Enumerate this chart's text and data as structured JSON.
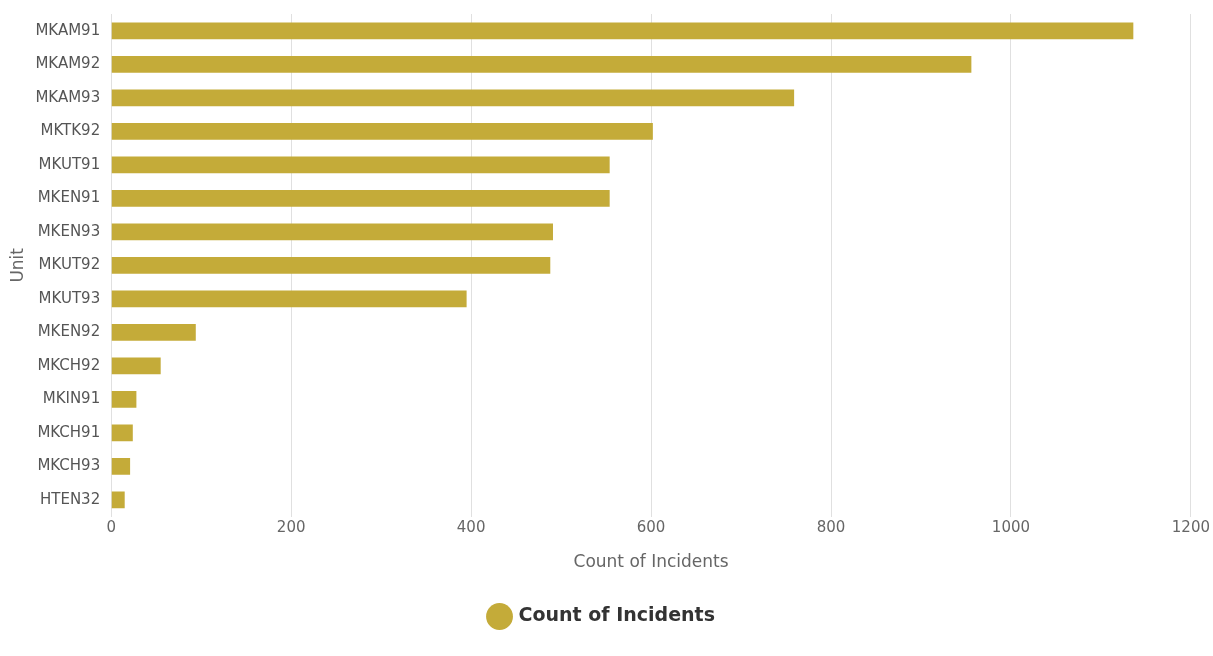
{
  "chart_data": {
    "type": "bar",
    "orientation": "horizontal",
    "xlabel": "Count of Incidents",
    "ylabel": "Unit",
    "categories": [
      "MKAM91",
      "MKAM92",
      "MKAM93",
      "MKTK92",
      "MKUT91",
      "MKEN91",
      "MKEN93",
      "MKUT92",
      "MKUT93",
      "MKEN92",
      "MKCH92",
      "MKIN91",
      "MKCH91",
      "MKCH93",
      "HTEN32"
    ],
    "series": [
      {
        "name": "Count of Incidents",
        "color": "#c4ab39",
        "values": [
          1136,
          956,
          759,
          602,
          554,
          554,
          491,
          488,
          395,
          94,
          55,
          28,
          24,
          21,
          15
        ]
      }
    ],
    "xlim": [
      0,
      1200
    ],
    "xticks": [
      0,
      200,
      400,
      600,
      800,
      1000,
      1200
    ],
    "grid": "x",
    "legend": "bottom"
  }
}
